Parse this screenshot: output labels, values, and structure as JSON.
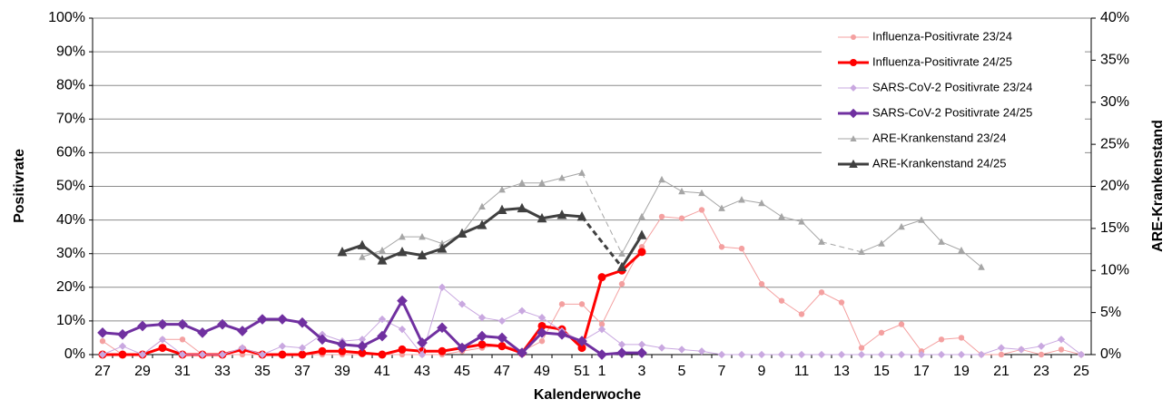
{
  "chart_data": {
    "type": "line",
    "xlabel": "Kalenderwoche",
    "ylabel": "Positivrate",
    "y2label": "ARE-Krankenstand",
    "grid": true,
    "legend": "upper right",
    "categories": [
      "27",
      null,
      "29",
      null,
      "31",
      null,
      "33",
      null,
      "35",
      null,
      "37",
      null,
      "39",
      null,
      "41",
      null,
      "43",
      null,
      "45",
      null,
      "47",
      null,
      "49",
      null,
      "51",
      "1",
      null,
      "3",
      null,
      "5",
      null,
      "7",
      null,
      "9",
      null,
      "11",
      null,
      "13",
      null,
      "15",
      null,
      "17",
      null,
      "19",
      null,
      "21",
      null,
      "23",
      null,
      "25"
    ],
    "ylim": [
      0,
      100
    ],
    "yticks": [
      {
        "value": 0,
        "label": "0%"
      },
      {
        "value": 10,
        "label": "10%"
      },
      {
        "value": 20,
        "label": "20%"
      },
      {
        "value": 30,
        "label": "30%"
      },
      {
        "value": 40,
        "label": "40%"
      },
      {
        "value": 50,
        "label": "50%"
      },
      {
        "value": 60,
        "label": "60%"
      },
      {
        "value": 70,
        "label": "70%"
      },
      {
        "value": 80,
        "label": "80%"
      },
      {
        "value": 90,
        "label": "90%"
      },
      {
        "value": 100,
        "label": "100%"
      }
    ],
    "y2lim": [
      0,
      40
    ],
    "y2ticks": [
      {
        "value": 0,
        "label": "0%"
      },
      {
        "value": 5,
        "label": "5%"
      },
      {
        "value": 10,
        "label": "10%"
      },
      {
        "value": 15,
        "label": "15%"
      },
      {
        "value": 20,
        "label": "20%"
      },
      {
        "value": 25,
        "label": "25%"
      },
      {
        "value": 30,
        "label": "30%"
      },
      {
        "value": 35,
        "label": "35%"
      },
      {
        "value": 40,
        "label": "40%"
      }
    ],
    "series": [
      {
        "name": "Influenza-Positivrate 23/24",
        "color": "#f4a0a0",
        "marker": "circle",
        "width": 1,
        "axis": "y",
        "values": [
          4,
          0,
          0,
          4.5,
          4.5,
          0,
          0,
          0,
          0,
          0,
          0,
          0,
          0,
          0,
          0,
          0,
          0,
          0,
          1,
          2,
          3,
          1,
          4,
          15,
          15,
          9,
          21,
          32,
          41,
          40.5,
          43,
          32,
          31.5,
          21,
          16,
          12,
          18.5,
          15.5,
          2,
          6.5,
          9,
          1,
          4.5,
          5,
          0,
          0,
          1.5,
          0,
          1.5,
          0
        ]
      },
      {
        "name": "Influenza-Positivrate 24/25",
        "color": "#ff0000",
        "marker": "circle",
        "width": 3,
        "axis": "y",
        "values": [
          0,
          0,
          0,
          2,
          0,
          0,
          0,
          1.5,
          0,
          0,
          0,
          1,
          1,
          0.5,
          0,
          1.5,
          1,
          1,
          2,
          3,
          2.5,
          0.5,
          8.5,
          7.5,
          2,
          23,
          25,
          30.5,
          null,
          null,
          null,
          null,
          null,
          null,
          null,
          null,
          null,
          null,
          null,
          null,
          null,
          null,
          null,
          null,
          null,
          null,
          null,
          null,
          null,
          null
        ]
      },
      {
        "name": "SARS-CoV-2 Positivrate 23/24",
        "color": "#c9a8e0",
        "marker": "diamond",
        "width": 1,
        "axis": "y",
        "values": [
          0,
          2.5,
          0,
          4.5,
          0,
          0,
          0,
          2,
          0,
          2.5,
          2,
          6,
          4,
          4.5,
          10.5,
          7.5,
          0,
          20,
          15,
          11,
          10,
          13,
          11,
          7,
          4,
          7.5,
          3,
          3,
          2,
          1.5,
          1,
          0,
          0,
          0,
          0,
          0,
          0,
          0,
          0,
          0,
          0,
          0,
          0,
          0,
          0,
          2,
          1.5,
          2.5,
          4.5,
          0
        ]
      },
      {
        "name": "SARS-CoV-2 Positivrate 24/25",
        "color": "#7030a0",
        "marker": "diamond",
        "width": 3,
        "axis": "y",
        "values": [
          6.5,
          6,
          8.5,
          9,
          9,
          6.5,
          9,
          7,
          10.5,
          10.5,
          9.5,
          4.5,
          3,
          2.5,
          5.5,
          16,
          3.5,
          8,
          2,
          5.5,
          5,
          0.5,
          6.5,
          6,
          4,
          0,
          0.5,
          0.5,
          null,
          null,
          null,
          null,
          null,
          null,
          null,
          null,
          null,
          null,
          null,
          null,
          null,
          null,
          null,
          null,
          null,
          null,
          null,
          null,
          null,
          null
        ]
      },
      {
        "name": "ARE-Krankenstand 23/24",
        "color": "#a6a6a6",
        "marker": "triangle",
        "width": 1,
        "axis": "y2",
        "gap_line": "dashed",
        "values": [
          null,
          null,
          null,
          null,
          null,
          null,
          null,
          null,
          null,
          null,
          null,
          null,
          null,
          11.6,
          12.4,
          14,
          14,
          13.2,
          14.4,
          17.6,
          19.6,
          20.4,
          20.4,
          21,
          21.6,
          null,
          12,
          16.4,
          20.8,
          19.4,
          19.2,
          17.4,
          18.4,
          18,
          16.4,
          15.8,
          13.4,
          null,
          12.2,
          13.2,
          15.2,
          16,
          13.4,
          12.4,
          10.4,
          null,
          null,
          null,
          null,
          null
        ]
      },
      {
        "name": "ARE-Krankenstand 24/25",
        "color": "#404040",
        "marker": "triangle",
        "width": 3,
        "axis": "y2",
        "gap_line": "dashed",
        "values": [
          null,
          null,
          null,
          null,
          null,
          null,
          null,
          null,
          null,
          null,
          null,
          null,
          12.2,
          13,
          11.2,
          12.2,
          11.8,
          12.6,
          14.4,
          15.4,
          17.2,
          17.4,
          16.2,
          16.6,
          16.4,
          null,
          10.4,
          14.2,
          null,
          null,
          null,
          null,
          null,
          null,
          null,
          null,
          null,
          null,
          null,
          null,
          null,
          null,
          null,
          null,
          null,
          null,
          null,
          null,
          null,
          null
        ]
      }
    ]
  }
}
